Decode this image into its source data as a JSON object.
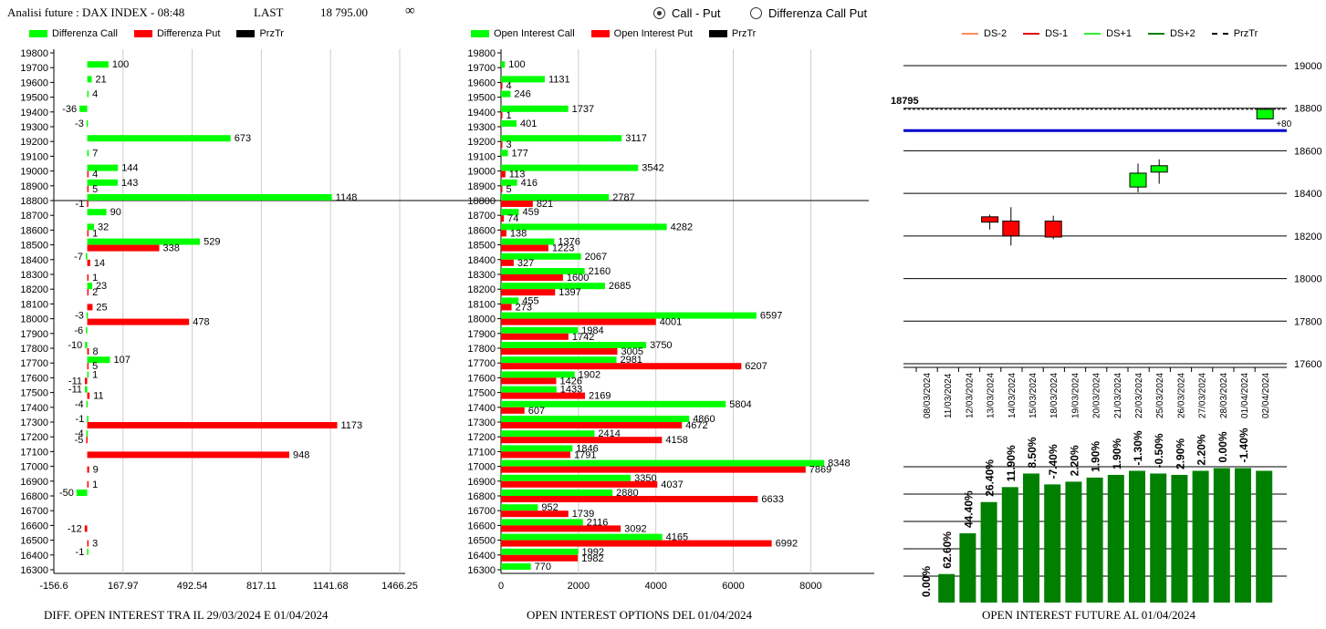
{
  "header": {
    "title": "Analisi future : DAX INDEX - 08:48",
    "last_label": "LAST",
    "last_value": "18 795.00",
    "infinity": "∞"
  },
  "radio": {
    "option1": "Call - Put",
    "option2": "Differenza Call Put",
    "selected": "Call - Put"
  },
  "legend_left": {
    "item1": "Differenza Call",
    "item2": "Differenza Put",
    "item3": "PrzTr"
  },
  "legend_mid": {
    "item1": "Open Interest Call",
    "item2": "Open Interest Put",
    "item3": "PrzTr"
  },
  "legend_right": {
    "item1": "DS-2",
    "item2": "DS-1",
    "item3": "DS+1",
    "item4": "DS+2",
    "item5": "PrzTr"
  },
  "captions": {
    "left": "DIFF. OPEN INTEREST TRA IL 29/03/2024 E 01/04/2024",
    "mid": "OPEN INTEREST OPTIONS DEL 01/04/2024",
    "right": "OPEN INTEREST FUTURE AL 01/04/2024"
  },
  "colors": {
    "call": "#00ff00",
    "put": "#ff0000",
    "przTr": "#000000",
    "future": "#008000",
    "blue": "#0000cc",
    "ds2": "#ff8c5a",
    "ds1": "#e00000",
    "ds1p": "#33ee33",
    "ds2p": "#008000"
  },
  "chart_data": [
    {
      "type": "bar",
      "orientation": "horizontal",
      "caption": "DIFF. OPEN INTEREST TRA IL 29/03/2024 E 01/04/2024",
      "categories": [
        "19800",
        "19700",
        "19600",
        "19500",
        "19400",
        "19300",
        "19200",
        "19100",
        "19000",
        "18900",
        "18800",
        "18700",
        "18600",
        "18500",
        "18400",
        "18300",
        "18200",
        "18100",
        "18000",
        "17900",
        "17800",
        "17700",
        "17600",
        "17500",
        "17400",
        "17300",
        "17200",
        "17100",
        "17000",
        "16900",
        "16800",
        "16700",
        "16600",
        "16500",
        "16400",
        "16300"
      ],
      "series": [
        {
          "name": "Differenza Call",
          "values": [
            null,
            100,
            21,
            4,
            -36,
            -3,
            673,
            7,
            144,
            143,
            1148,
            90,
            32,
            529,
            -7,
            null,
            23,
            null,
            -3,
            -6,
            -10,
            107,
            1,
            -11,
            -4,
            -1,
            -4,
            null,
            null,
            null,
            -50,
            null,
            null,
            null,
            -1,
            null
          ]
        },
        {
          "name": "Differenza Put",
          "values": [
            null,
            null,
            null,
            null,
            null,
            null,
            null,
            null,
            4,
            5,
            -1,
            null,
            1,
            338,
            14,
            1,
            2,
            25,
            478,
            null,
            8,
            5,
            -11,
            11,
            null,
            1173,
            -5,
            948,
            9,
            1,
            null,
            null,
            -12,
            3,
            null,
            null
          ]
        }
      ],
      "przTr": "18800",
      "xticks": [
        "-156.6",
        "167.97",
        "492.54",
        "817.11",
        "1141.68",
        "1466.25"
      ],
      "xlim": [
        -156.6,
        1466.25
      ]
    },
    {
      "type": "bar",
      "orientation": "horizontal",
      "caption": "OPEN INTEREST OPTIONS DEL 01/04/2024",
      "categories": [
        "19800",
        "19700",
        "19600",
        "19500",
        "19400",
        "19300",
        "19200",
        "19100",
        "19000",
        "18900",
        "18800",
        "18700",
        "18600",
        "18500",
        "18400",
        "18300",
        "18200",
        "18100",
        "18000",
        "17900",
        "17800",
        "17700",
        "17600",
        "17500",
        "17400",
        "17300",
        "17200",
        "17100",
        "17000",
        "16900",
        "16800",
        "16700",
        "16600",
        "16500",
        "16400",
        "16300"
      ],
      "series": [
        {
          "name": "Open Interest Call",
          "values": [
            null,
            100,
            1131,
            246,
            1737,
            401,
            3117,
            177,
            3542,
            416,
            2787,
            459,
            4282,
            1376,
            2067,
            2160,
            2685,
            455,
            6597,
            1984,
            3750,
            2981,
            1902,
            1433,
            5804,
            4860,
            2414,
            1846,
            8348,
            3350,
            2880,
            952,
            2116,
            4165,
            1992,
            770
          ]
        },
        {
          "name": "Open Interest Put",
          "values": [
            null,
            null,
            4,
            null,
            1,
            null,
            3,
            null,
            113,
            5,
            821,
            74,
            138,
            1223,
            327,
            1600,
            1397,
            273,
            4001,
            1742,
            3005,
            6207,
            1426,
            2169,
            607,
            4672,
            4158,
            1791,
            7869,
            4037,
            6633,
            1739,
            3092,
            6992,
            1982,
            null
          ]
        }
      ],
      "przTr": "18800",
      "xticks": [
        "0",
        "2000",
        "4000",
        "6000",
        "8000"
      ],
      "xlim": [
        0,
        9500
      ]
    },
    {
      "type": "candlestick",
      "dates": [
        "08/03/2024",
        "11/03/2024",
        "12/03/2024",
        "13/03/2024",
        "14/03/2024",
        "15/03/2024",
        "18/03/2024",
        "19/03/2024",
        "20/03/2024",
        "21/03/2024",
        "22/03/2024",
        "25/03/2024",
        "26/03/2024",
        "27/03/2024",
        "28/03/2024",
        "01/04/2024",
        "02/04/2024"
      ],
      "candles": [
        {
          "date": "13/03/2024",
          "open": 18290,
          "high": 18300,
          "low": 18230,
          "close": 18265,
          "color": "red"
        },
        {
          "date": "14/03/2024",
          "open": 18270,
          "high": 18335,
          "low": 18155,
          "close": 18200,
          "color": "red"
        },
        {
          "date": "18/03/2024",
          "open": 18270,
          "high": 18295,
          "low": 18185,
          "close": 18195,
          "color": "red"
        },
        {
          "date": "22/03/2024",
          "open": 18430,
          "high": 18540,
          "low": 18405,
          "close": 18495,
          "color": "green"
        },
        {
          "date": "25/03/2024",
          "open": 18500,
          "high": 18560,
          "low": 18445,
          "close": 18530,
          "color": "green"
        },
        {
          "date": "02/04/2024",
          "open": 18750,
          "high": 18800,
          "low": 18750,
          "close": 18795,
          "color": "green"
        }
      ],
      "przTr": 18795,
      "przTr_label": "18795",
      "change_label": "+80",
      "blue_line": 18695,
      "ylim": [
        17600,
        19000
      ],
      "yticks": [
        "19000",
        "18800",
        "18600",
        "18400",
        "18200",
        "18000",
        "17800",
        "17600"
      ]
    },
    {
      "type": "bar",
      "caption": "OPEN INTEREST FUTURE AL 01/04/2024",
      "categories": [
        "08/03/2024",
        "11/03/2024",
        "12/03/2024",
        "13/03/2024",
        "14/03/2024",
        "15/03/2024",
        "18/03/2024",
        "19/03/2024",
        "20/03/2024",
        "21/03/2024",
        "22/03/2024",
        "25/03/2024",
        "26/03/2024",
        "27/03/2024",
        "28/03/2024",
        "01/04/2024",
        "02/04/2024"
      ],
      "values": [
        0,
        0.21,
        0.51,
        0.74,
        0.85,
        0.95,
        0.87,
        0.89,
        0.92,
        0.94,
        0.97,
        0.95,
        0.94,
        0.97,
        0.99,
        0.99,
        0.97
      ],
      "labels": [
        "0.00%",
        "62.60%",
        "44.40%",
        "26.40%",
        "11.90%",
        "8.50%",
        "-7.40%",
        "2.20%",
        "1.90%",
        "1.90%",
        "-1.30%",
        "-0.50%",
        "2.90%",
        "2.20%",
        "0.00%",
        "-1.40%",
        ""
      ]
    }
  ]
}
